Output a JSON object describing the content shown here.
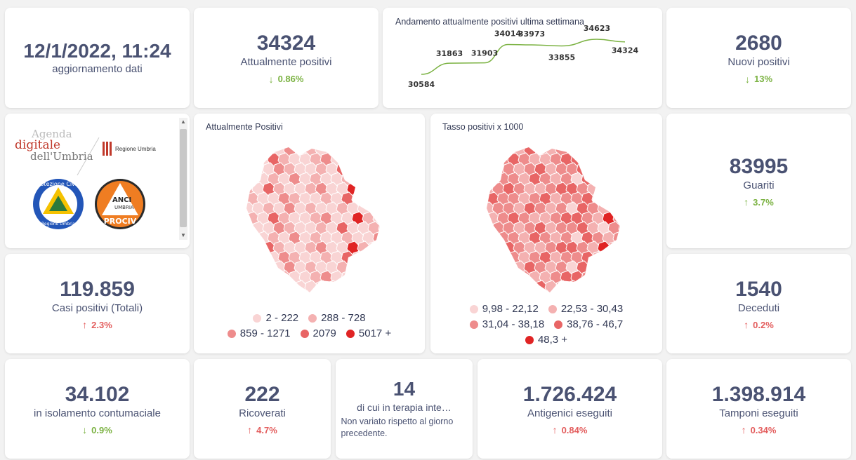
{
  "update": {
    "datetime": "12/1/2022, 11:24",
    "label": "aggiornamento dati"
  },
  "attualmente_positivi": {
    "value": "34324",
    "label": "Attualmente positivi",
    "delta": "0.86%",
    "direction": "down"
  },
  "trend": {
    "title": "Andamento attualmente positivi ultima settimana",
    "values": [
      30584,
      31863,
      31903,
      34014,
      33973,
      33855,
      34623,
      34324
    ],
    "labels": [
      "30584",
      "31863",
      "31903",
      "34014",
      "33973",
      "33855",
      "34623",
      "34324"
    ],
    "color": "#7bb242"
  },
  "nuovi_positivi": {
    "value": "2680",
    "label": "Nuovi positivi",
    "delta": "13%",
    "direction": "down"
  },
  "logos": {
    "agenda_line1": "Agenda",
    "agenda_line2": "digitale",
    "agenda_line3": "dell'Umbria",
    "regione": "Regione Umbria",
    "protezione": "Protezione Civile",
    "protezione_sub": "Regione Umbria",
    "anci1": "ANCI",
    "anci2": "UMBRIA",
    "anci3": "PROCIV"
  },
  "map_positivi": {
    "title": "Attualmente Positivi",
    "legend": [
      {
        "label": "2 - 222",
        "color": "#f9d4d4"
      },
      {
        "label": "288 - 728",
        "color": "#f4b1b1"
      },
      {
        "label": "859 - 1271",
        "color": "#ee8c8c"
      },
      {
        "label": "2079",
        "color": "#e86565"
      },
      {
        "label": "5017 +",
        "color": "#e02424"
      }
    ]
  },
  "map_tasso": {
    "title": "Tasso positivi x 1000",
    "legend": [
      {
        "label": "9,98 - 22,12",
        "color": "#f9d4d4"
      },
      {
        "label": "22,53 - 30,43",
        "color": "#f4b1b1"
      },
      {
        "label": "31,04 - 38,18",
        "color": "#ee8c8c"
      },
      {
        "label": "38,76 - 46,7",
        "color": "#e86565"
      },
      {
        "label": "48,3 +",
        "color": "#e02424"
      }
    ]
  },
  "guariti": {
    "value": "83995",
    "label": "Guariti",
    "delta": "3.7%",
    "direction": "up"
  },
  "casi_totali": {
    "value": "119.859",
    "label": "Casi positivi (Totali)",
    "delta": "2.3%",
    "direction": "up"
  },
  "deceduti": {
    "value": "1540",
    "label": "Deceduti",
    "delta": "0.2%",
    "direction": "up"
  },
  "isolamento": {
    "value": "34.102",
    "label": "in isolamento contumaciale",
    "delta": "0.9%",
    "direction": "down"
  },
  "ricoverati": {
    "value": "222",
    "label": "Ricoverati",
    "delta": "4.7%",
    "direction": "up"
  },
  "terapia": {
    "value": "14",
    "label": "di cui in terapia inte…",
    "note": "Non variato rispetto al giorno precedente."
  },
  "antigenici": {
    "value": "1.726.424",
    "label": "Antigenici eseguiti",
    "delta": "0.84%",
    "direction": "up"
  },
  "tamponi": {
    "value": "1.398.914",
    "label": "Tamponi eseguiti",
    "delta": "0.34%",
    "direction": "up"
  },
  "icons": {
    "down": "arrow-down-icon",
    "up": "arrow-up-icon"
  },
  "colors": {
    "up": "#e35d5d",
    "down": "#7bb242",
    "text": "#4a5272"
  }
}
